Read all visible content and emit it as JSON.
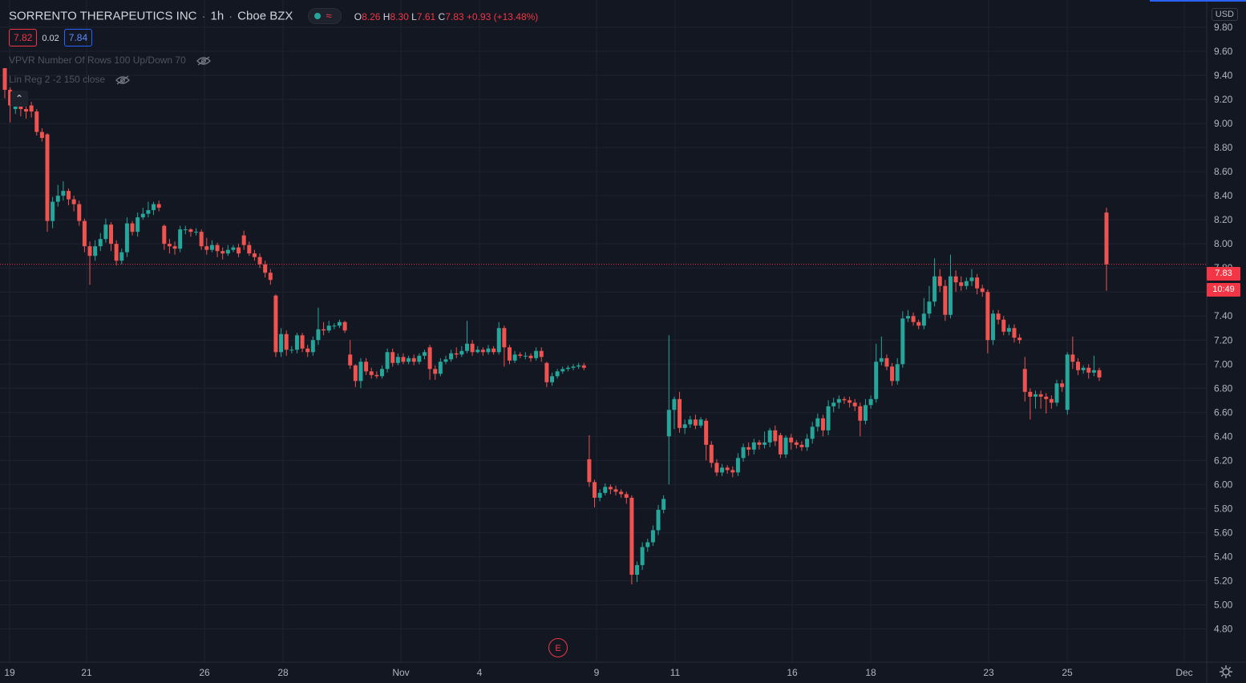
{
  "header": {
    "symbol": "SORRENTO THERAPEUTICS INC",
    "interval": "1h",
    "exchange": "Cboe BZX",
    "wave_glyph": "≈",
    "open_label": "O",
    "open": "8.26",
    "high_label": "H",
    "high": "8.30",
    "low_label": "L",
    "low": "7.61",
    "close_label": "C",
    "close": "7.83",
    "change": "+0.93 (+13.48%)"
  },
  "quote": {
    "bid": "7.82",
    "spread": "0.02",
    "ask": "7.84"
  },
  "indicators": [
    {
      "label": "VPVR Number Of Rows 100 Up/Down 70"
    },
    {
      "label": "Lin Reg 2 -2 150 close"
    }
  ],
  "collapse_glyph": "⌃",
  "currency": "USD",
  "last_price": "7.83",
  "countdown": "10:49",
  "earnings_marker": "E",
  "colors": {
    "up": "#26a69a",
    "down": "#ef5350",
    "background": "#131722",
    "grid": "#1f2230",
    "axis_text": "#b2b5be",
    "price_line": "#f23645"
  },
  "chart_data": {
    "type": "candlestick",
    "y_axis": {
      "min": 4.72,
      "max": 9.95,
      "ticks": [
        "9.80",
        "9.60",
        "9.40",
        "9.20",
        "9.00",
        "8.80",
        "8.60",
        "8.40",
        "8.20",
        "8.00",
        "7.80",
        "7.60",
        "7.40",
        "7.20",
        "7.00",
        "6.80",
        "6.60",
        "6.40",
        "6.20",
        "6.00",
        "5.80",
        "5.60",
        "5.40",
        "5.20",
        "5.00",
        "4.80"
      ]
    },
    "x_axis": {
      "labels": [
        "19",
        "21",
        "26",
        "28",
        "Nov",
        "4",
        "9",
        "11",
        "16",
        "18",
        "23",
        "25",
        "Dec"
      ]
    },
    "candles": [
      [
        9.46,
        9.28,
        9.46,
        9.21
      ],
      [
        9.28,
        9.15,
        9.3,
        9.01
      ],
      [
        9.12,
        9.17,
        9.2,
        9.08
      ],
      [
        9.16,
        9.12,
        9.19,
        9.06
      ],
      [
        9.12,
        9.1,
        9.16,
        9.04
      ],
      [
        9.15,
        9.1,
        9.18,
        9.05
      ],
      [
        9.1,
        8.93,
        9.12,
        8.9
      ],
      [
        8.93,
        8.88,
        8.96,
        8.85
      ],
      [
        8.91,
        8.19,
        8.92,
        8.1
      ],
      [
        8.19,
        8.35,
        8.39,
        8.13
      ],
      [
        8.35,
        8.4,
        8.49,
        8.31
      ],
      [
        8.4,
        8.44,
        8.52,
        8.36
      ],
      [
        8.44,
        8.37,
        8.46,
        8.32
      ],
      [
        8.37,
        8.33,
        8.4,
        8.27
      ],
      [
        8.33,
        8.19,
        8.36,
        8.15
      ],
      [
        8.19,
        7.98,
        8.21,
        7.93
      ],
      [
        7.98,
        7.9,
        8.02,
        7.66
      ],
      [
        7.9,
        7.98,
        8.03,
        7.86
      ],
      [
        7.98,
        8.04,
        8.09,
        7.94
      ],
      [
        8.04,
        8.16,
        8.21,
        8.01
      ],
      [
        8.16,
        8.0,
        8.18,
        7.94
      ],
      [
        8.0,
        7.86,
        8.03,
        7.82
      ],
      [
        7.86,
        7.93,
        7.96,
        7.83
      ],
      [
        7.93,
        8.17,
        8.22,
        7.89
      ],
      [
        8.17,
        8.1,
        8.19,
        8.07
      ],
      [
        8.1,
        8.22,
        8.26,
        8.06
      ],
      [
        8.22,
        8.25,
        8.3,
        8.2
      ],
      [
        8.25,
        8.28,
        8.35,
        8.22
      ],
      [
        8.28,
        8.33,
        8.35,
        8.24
      ],
      [
        8.33,
        8.3,
        8.36,
        8.27
      ],
      [
        8.15,
        8.0,
        8.16,
        7.95
      ],
      [
        8.0,
        7.98,
        8.04,
        7.92
      ],
      [
        7.98,
        7.96,
        8.02,
        7.91
      ],
      [
        7.96,
        8.12,
        8.15,
        7.93
      ],
      [
        8.12,
        8.12,
        8.15,
        8.08
      ],
      [
        8.12,
        8.1,
        8.13,
        8.06
      ],
      [
        8.1,
        8.1,
        8.13,
        8.07
      ],
      [
        8.1,
        7.98,
        8.12,
        7.95
      ],
      [
        7.98,
        7.95,
        8.05,
        7.91
      ],
      [
        7.95,
        7.99,
        8.03,
        7.93
      ],
      [
        7.99,
        7.94,
        8.01,
        7.89
      ],
      [
        7.94,
        7.92,
        7.97,
        7.87
      ],
      [
        7.92,
        7.95,
        7.99,
        7.9
      ],
      [
        7.95,
        7.97,
        7.99,
        7.93
      ],
      [
        7.97,
        7.92,
        8.0,
        7.89
      ],
      [
        8.07,
        7.99,
        8.11,
        7.95
      ],
      [
        7.99,
        7.92,
        8.02,
        7.9
      ],
      [
        7.92,
        7.89,
        7.95,
        7.86
      ],
      [
        7.89,
        7.83,
        7.92,
        7.8
      ],
      [
        7.83,
        7.76,
        7.86,
        7.72
      ],
      [
        7.76,
        7.7,
        7.79,
        7.66
      ],
      [
        7.57,
        7.1,
        7.58,
        7.06
      ],
      [
        7.1,
        7.25,
        7.3,
        7.06
      ],
      [
        7.25,
        7.12,
        7.28,
        7.07
      ],
      [
        7.12,
        7.12,
        7.15,
        7.09
      ],
      [
        7.12,
        7.24,
        7.26,
        7.09
      ],
      [
        7.24,
        7.13,
        7.26,
        7.1
      ],
      [
        7.13,
        7.1,
        7.16,
        7.06
      ],
      [
        7.1,
        7.2,
        7.23,
        7.07
      ],
      [
        7.2,
        7.29,
        7.47,
        7.16
      ],
      [
        7.29,
        7.28,
        7.35,
        7.24
      ],
      [
        7.28,
        7.32,
        7.36,
        7.26
      ],
      [
        7.32,
        7.32,
        7.34,
        7.29
      ],
      [
        7.32,
        7.35,
        7.37,
        7.3
      ],
      [
        7.35,
        7.28,
        7.36,
        7.26
      ],
      [
        7.08,
        6.99,
        7.2,
        6.96
      ],
      [
        6.99,
        6.86,
        7.0,
        6.81
      ],
      [
        6.86,
        7.02,
        7.05,
        6.8
      ],
      [
        7.02,
        6.94,
        7.05,
        6.91
      ],
      [
        6.94,
        6.91,
        6.97,
        6.88
      ],
      [
        6.91,
        6.9,
        6.94,
        6.88
      ],
      [
        6.9,
        6.96,
        6.99,
        6.88
      ],
      [
        6.96,
        7.1,
        7.13,
        6.93
      ],
      [
        7.1,
        7.01,
        7.13,
        6.98
      ],
      [
        7.01,
        7.06,
        7.09,
        6.99
      ],
      [
        7.06,
        7.02,
        7.09,
        7.0
      ],
      [
        7.02,
        7.05,
        7.07,
        7.0
      ],
      [
        7.05,
        7.02,
        7.08,
        6.99
      ],
      [
        7.02,
        7.07,
        7.09,
        7.0
      ],
      [
        7.07,
        7.1,
        7.12,
        7.04
      ],
      [
        7.14,
        6.96,
        7.16,
        6.87
      ],
      [
        6.96,
        6.92,
        6.99,
        6.87
      ],
      [
        6.92,
        7.02,
        7.05,
        6.9
      ],
      [
        7.02,
        7.04,
        7.07,
        7.0
      ],
      [
        7.04,
        7.09,
        7.12,
        7.02
      ],
      [
        7.09,
        7.08,
        7.14,
        7.05
      ],
      [
        7.08,
        7.11,
        7.15,
        7.06
      ],
      [
        7.11,
        7.17,
        7.36,
        7.09
      ],
      [
        7.17,
        7.1,
        7.2,
        7.07
      ],
      [
        7.1,
        7.12,
        7.15,
        7.09
      ],
      [
        7.12,
        7.1,
        7.14,
        7.07
      ],
      [
        7.1,
        7.13,
        7.16,
        7.08
      ],
      [
        7.13,
        7.1,
        7.15,
        7.08
      ],
      [
        7.1,
        7.3,
        7.35,
        7.08
      ],
      [
        7.3,
        7.14,
        7.32,
        6.98
      ],
      [
        7.14,
        7.03,
        7.16,
        7.0
      ],
      [
        7.03,
        7.08,
        7.11,
        7.01
      ],
      [
        7.08,
        7.07,
        7.1,
        7.05
      ],
      [
        7.07,
        7.07,
        7.1,
        7.04
      ],
      [
        7.07,
        7.05,
        7.09,
        7.02
      ],
      [
        7.05,
        7.11,
        7.14,
        7.03
      ],
      [
        7.11,
        7.06,
        7.14,
        7.02
      ],
      [
        7.01,
        6.85,
        7.02,
        6.81
      ],
      [
        6.85,
        6.9,
        6.93,
        6.82
      ],
      [
        6.9,
        6.94,
        6.96,
        6.88
      ],
      [
        6.94,
        6.96,
        6.98,
        6.92
      ],
      [
        6.96,
        6.97,
        6.99,
        6.94
      ],
      [
        6.97,
        6.98,
        7.0,
        6.95
      ],
      [
        6.98,
        6.99,
        7.01,
        6.96
      ],
      [
        6.99,
        6.97,
        7.01,
        6.95
      ],
      [
        6.21,
        6.02,
        6.41,
        5.98
      ],
      [
        6.02,
        5.89,
        6.04,
        5.81
      ],
      [
        5.89,
        5.93,
        5.96,
        5.86
      ],
      [
        5.93,
        5.98,
        6.01,
        5.91
      ],
      [
        5.98,
        5.96,
        6.0,
        5.92
      ],
      [
        5.96,
        5.94,
        5.99,
        5.91
      ],
      [
        5.94,
        5.92,
        5.96,
        5.89
      ],
      [
        5.92,
        5.89,
        5.94,
        5.84
      ],
      [
        5.89,
        5.25,
        5.91,
        5.17
      ],
      [
        5.25,
        5.33,
        5.36,
        5.19
      ],
      [
        5.33,
        5.48,
        5.52,
        5.29
      ],
      [
        5.48,
        5.52,
        5.55,
        5.44
      ],
      [
        5.52,
        5.62,
        5.66,
        5.49
      ],
      [
        5.62,
        5.79,
        5.83,
        5.58
      ],
      [
        5.79,
        5.88,
        5.91,
        5.76
      ],
      [
        6.4,
        6.62,
        7.24,
        6.0
      ],
      [
        6.62,
        6.71,
        6.73,
        6.46
      ],
      [
        6.71,
        6.47,
        6.77,
        6.43
      ],
      [
        6.47,
        6.5,
        6.54,
        6.42
      ],
      [
        6.5,
        6.54,
        6.57,
        6.47
      ],
      [
        6.54,
        6.49,
        6.58,
        6.46
      ],
      [
        6.49,
        6.54,
        6.56,
        6.47
      ],
      [
        6.53,
        6.33,
        6.55,
        6.2
      ],
      [
        6.33,
        6.18,
        6.36,
        6.14
      ],
      [
        6.18,
        6.1,
        6.21,
        6.07
      ],
      [
        6.1,
        6.14,
        6.17,
        6.07
      ],
      [
        6.14,
        6.12,
        6.16,
        6.09
      ],
      [
        6.12,
        6.1,
        6.15,
        6.06
      ],
      [
        6.1,
        6.22,
        6.26,
        6.07
      ],
      [
        6.22,
        6.31,
        6.34,
        6.19
      ],
      [
        6.31,
        6.29,
        6.35,
        6.24
      ],
      [
        6.29,
        6.35,
        6.38,
        6.25
      ],
      [
        6.35,
        6.33,
        6.37,
        6.29
      ],
      [
        6.33,
        6.35,
        6.44,
        6.3
      ],
      [
        6.35,
        6.45,
        6.47,
        6.31
      ],
      [
        6.45,
        6.36,
        6.49,
        6.32
      ],
      [
        6.41,
        6.25,
        6.43,
        6.22
      ],
      [
        6.25,
        6.39,
        6.41,
        6.22
      ],
      [
        6.39,
        6.35,
        6.42,
        6.29
      ],
      [
        6.35,
        6.33,
        6.37,
        6.3
      ],
      [
        6.33,
        6.31,
        6.36,
        6.28
      ],
      [
        6.31,
        6.38,
        6.42,
        6.28
      ],
      [
        6.38,
        6.48,
        6.52,
        6.34
      ],
      [
        6.48,
        6.55,
        6.59,
        6.44
      ],
      [
        6.55,
        6.45,
        6.58,
        6.4
      ],
      [
        6.45,
        6.65,
        6.7,
        6.41
      ],
      [
        6.65,
        6.68,
        6.72,
        6.6
      ],
      [
        6.68,
        6.71,
        6.74,
        6.63
      ],
      [
        6.71,
        6.7,
        6.73,
        6.67
      ],
      [
        6.7,
        6.68,
        6.73,
        6.64
      ],
      [
        6.68,
        6.65,
        6.71,
        6.61
      ],
      [
        6.65,
        6.53,
        6.68,
        6.4
      ],
      [
        6.53,
        6.66,
        6.71,
        6.5
      ],
      [
        6.66,
        6.71,
        6.74,
        6.63
      ],
      [
        6.71,
        7.02,
        7.17,
        6.68
      ],
      [
        7.02,
        7.05,
        7.23,
        6.99
      ],
      [
        7.05,
        6.98,
        7.08,
        6.95
      ],
      [
        6.98,
        6.86,
        7.01,
        6.82
      ],
      [
        6.86,
        7.0,
        7.05,
        6.83
      ],
      [
        7.0,
        7.38,
        7.44,
        6.97
      ],
      [
        7.38,
        7.4,
        7.45,
        7.35
      ],
      [
        7.4,
        7.35,
        7.43,
        7.32
      ],
      [
        7.35,
        7.32,
        7.37,
        7.29
      ],
      [
        7.32,
        7.42,
        7.55,
        7.29
      ],
      [
        7.42,
        7.52,
        7.65,
        7.38
      ],
      [
        7.52,
        7.73,
        7.88,
        7.48
      ],
      [
        7.73,
        7.65,
        7.79,
        7.6
      ],
      [
        7.65,
        7.41,
        7.7,
        7.36
      ],
      [
        7.41,
        7.73,
        7.91,
        7.38
      ],
      [
        7.73,
        7.68,
        7.78,
        7.6
      ],
      [
        7.68,
        7.65,
        7.73,
        7.61
      ],
      [
        7.65,
        7.69,
        7.72,
        7.62
      ],
      [
        7.69,
        7.72,
        7.79,
        7.65
      ],
      [
        7.72,
        7.63,
        7.75,
        7.58
      ],
      [
        7.63,
        7.6,
        7.66,
        7.56
      ],
      [
        7.6,
        7.2,
        7.62,
        7.09
      ],
      [
        7.2,
        7.42,
        7.45,
        7.16
      ],
      [
        7.42,
        7.37,
        7.45,
        7.33
      ],
      [
        7.37,
        7.27,
        7.4,
        7.24
      ],
      [
        7.27,
        7.3,
        7.33,
        7.24
      ],
      [
        7.3,
        7.22,
        7.33,
        7.18
      ],
      [
        7.22,
        7.2,
        7.25,
        7.17
      ],
      [
        6.96,
        6.77,
        7.06,
        6.69
      ],
      [
        6.77,
        6.73,
        6.8,
        6.54
      ],
      [
        6.73,
        6.75,
        6.78,
        6.63
      ],
      [
        6.75,
        6.73,
        6.78,
        6.63
      ],
      [
        6.73,
        6.71,
        6.76,
        6.59
      ],
      [
        6.71,
        6.68,
        6.74,
        6.63
      ],
      [
        6.68,
        6.84,
        6.87,
        6.65
      ],
      [
        6.84,
        6.81,
        6.87,
        6.77
      ],
      [
        6.62,
        7.08,
        7.1,
        6.58
      ],
      [
        7.08,
        7.02,
        7.23,
        6.96
      ],
      [
        7.02,
        6.95,
        7.05,
        6.91
      ],
      [
        6.95,
        6.97,
        6.99,
        6.92
      ],
      [
        6.97,
        6.93,
        7.0,
        6.88
      ],
      [
        6.93,
        6.95,
        7.07,
        6.9
      ],
      [
        6.95,
        6.89,
        6.97,
        6.86
      ],
      [
        8.26,
        7.83,
        8.3,
        7.61
      ]
    ]
  }
}
